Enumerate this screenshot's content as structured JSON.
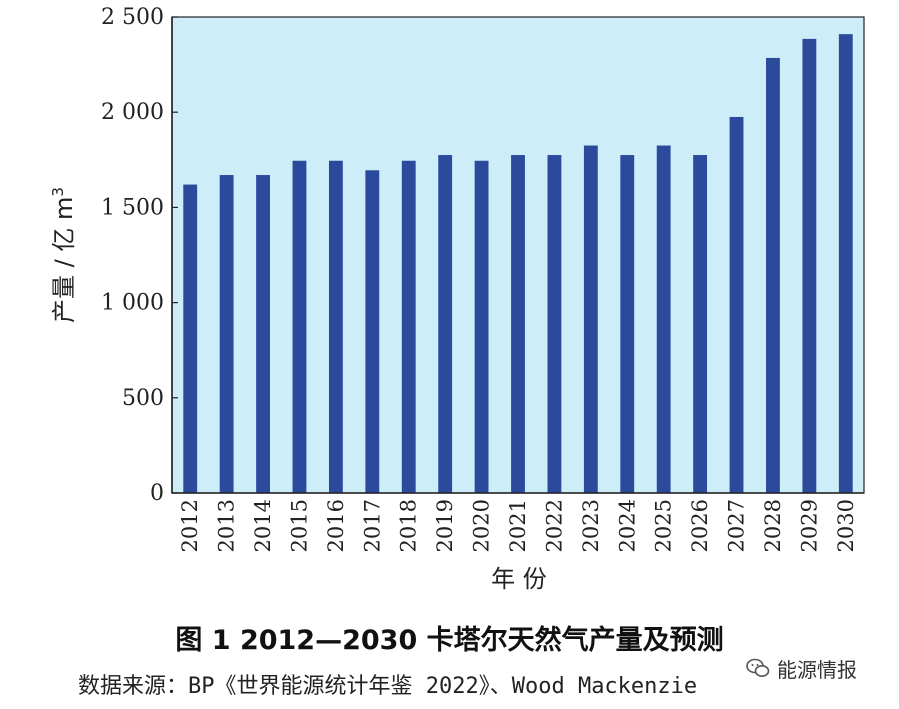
{
  "chart_data": {
    "type": "bar",
    "categories": [
      "2012",
      "2013",
      "2014",
      "2015",
      "2016",
      "2017",
      "2018",
      "2019",
      "2020",
      "2021",
      "2022",
      "2023",
      "2024",
      "2025",
      "2026",
      "2027",
      "2028",
      "2029",
      "2030"
    ],
    "values": [
      1620,
      1670,
      1670,
      1745,
      1745,
      1695,
      1745,
      1775,
      1745,
      1775,
      1775,
      1825,
      1775,
      1825,
      1775,
      1975,
      2285,
      2385,
      2410
    ],
    "ylim": [
      0,
      2500
    ],
    "yticks": [
      0,
      500,
      1000,
      1500,
      2000,
      2500
    ],
    "ytick_labels": [
      "0",
      "500",
      "1 000",
      "1 500",
      "2 000",
      "2 500"
    ],
    "ylabel": "产量 / 亿 m",
    "ylabel_sup": "3",
    "xlabel": "年  份",
    "grid": false,
    "colors": {
      "bar": "#2b4a9c",
      "plot_bg": "#cdeef8",
      "axis": "#222222"
    }
  },
  "caption": "图 1   2012—2030 卡塔尔天然气产量及预测",
  "source": "数据来源：BP《世界能源统计年鉴 2022》、Wood Mackenzie",
  "watermark": {
    "icon": "wechat-icon",
    "text": "能源情报"
  }
}
